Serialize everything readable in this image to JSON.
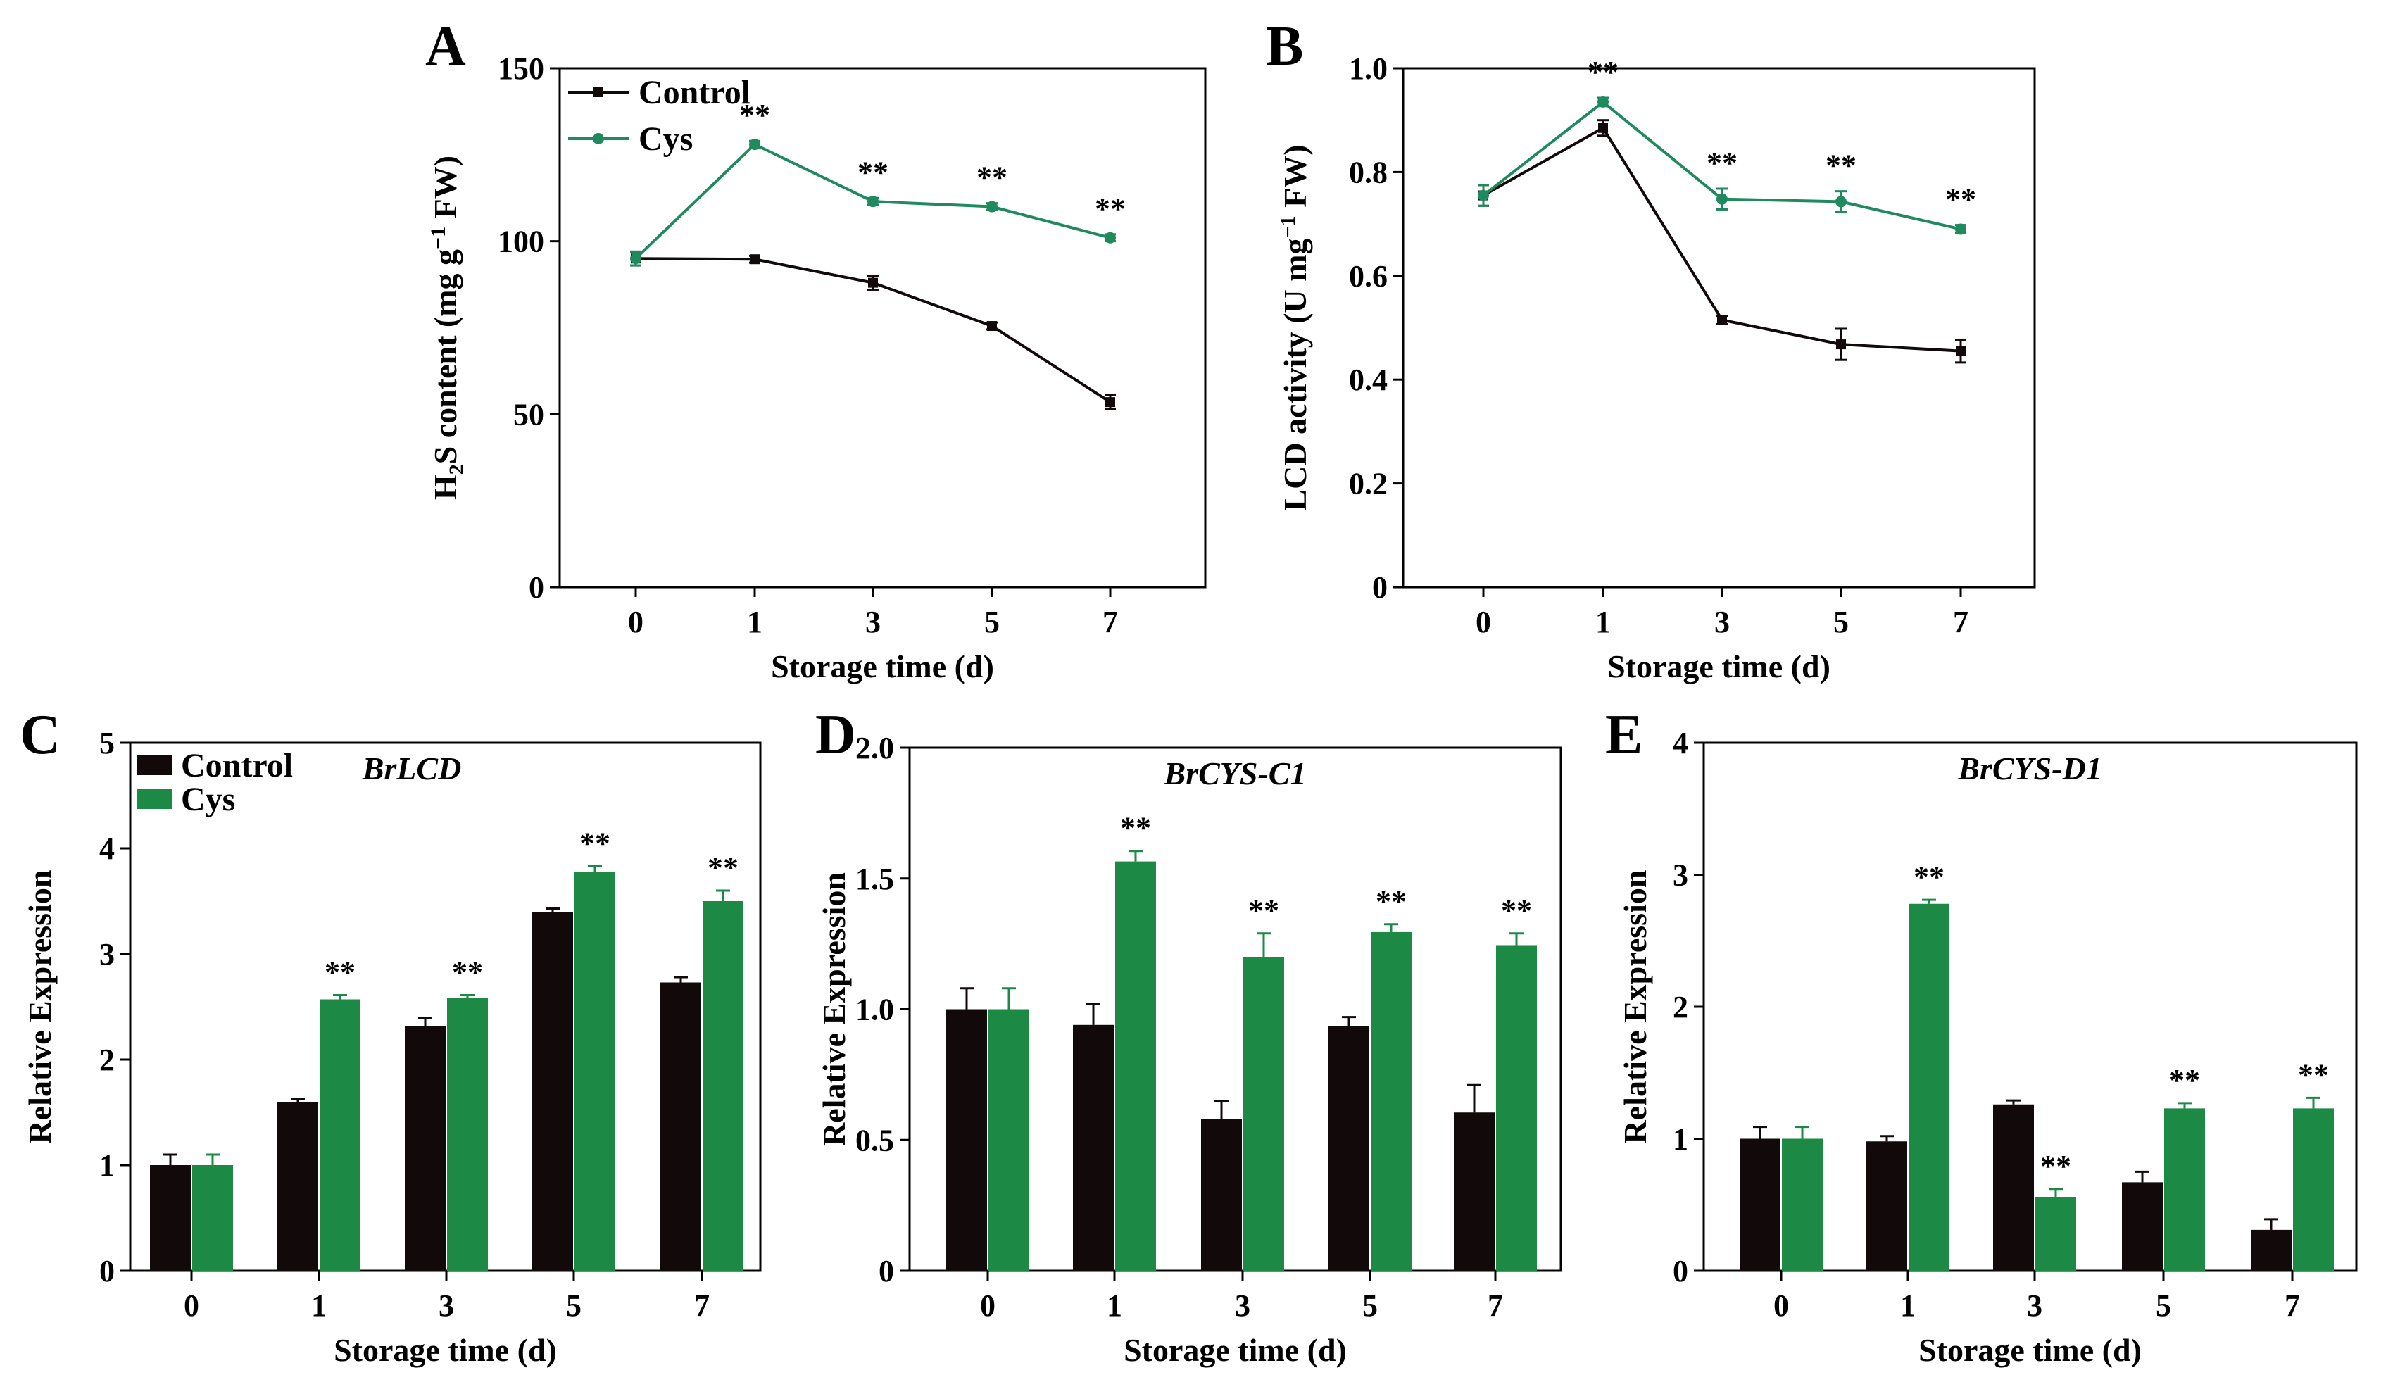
{
  "colors": {
    "control": "#120a0a",
    "cys": "#1c8a44",
    "cys_line": "#1e8a5e",
    "axis": "#000000"
  },
  "chart_data": [
    {
      "id": "A",
      "type": "line",
      "panel_label": "A",
      "title": "",
      "xlabel": "Storage time (d)",
      "ylabel_parts": [
        "H",
        "2",
        "S content (mg g",
        "−1",
        " FW)"
      ],
      "categories": [
        "0",
        "1",
        "3",
        "5",
        "7"
      ],
      "ylim": [
        0,
        150
      ],
      "yticks": [
        0,
        50,
        100,
        150
      ],
      "ytick_labels": [
        "0",
        "50",
        "100",
        "150"
      ],
      "legend": {
        "placement": "top-left",
        "entries": [
          "Control",
          "Cys"
        ]
      },
      "series": [
        {
          "name": "Control",
          "values": [
            95,
            94.8,
            88,
            75.5,
            53.5
          ],
          "errors": [
            2,
            1,
            2,
            1,
            2
          ]
        },
        {
          "name": "Cys",
          "values": [
            95,
            128,
            111.5,
            110,
            101
          ],
          "errors": [
            2,
            1,
            1,
            1,
            1
          ]
        }
      ],
      "significance": [
        "",
        "**",
        "**",
        "**",
        "**"
      ]
    },
    {
      "id": "B",
      "type": "line",
      "panel_label": "B",
      "title": "",
      "xlabel": "Storage time (d)",
      "ylabel_parts": [
        "LCD activity (U mg",
        "−1",
        " FW)"
      ],
      "categories": [
        "0",
        "1",
        "3",
        "5",
        "7"
      ],
      "ylim": [
        0,
        1.0
      ],
      "yticks": [
        0,
        0.2,
        0.4,
        0.6,
        0.8,
        1.0
      ],
      "ytick_labels": [
        "0",
        "0.2",
        "0.4",
        "0.6",
        "0.8",
        "1.0"
      ],
      "series": [
        {
          "name": "Control",
          "values": [
            0.755,
            0.885,
            0.515,
            0.468,
            0.455
          ],
          "errors": [
            0.02,
            0.015,
            0.008,
            0.03,
            0.022
          ]
        },
        {
          "name": "Cys",
          "values": [
            0.755,
            0.935,
            0.748,
            0.743,
            0.69
          ],
          "errors": [
            0.02,
            0.008,
            0.02,
            0.02,
            0.008
          ]
        }
      ],
      "significance": [
        "",
        "**",
        "**",
        "**",
        "**"
      ]
    },
    {
      "id": "C",
      "type": "bar",
      "panel_label": "C",
      "title": "BrLCD",
      "xlabel": "Storage time (d)",
      "ylabel": "Relative Expression",
      "categories": [
        "0",
        "1",
        "3",
        "5",
        "7"
      ],
      "ylim": [
        0,
        5
      ],
      "yticks": [
        0,
        1,
        2,
        3,
        4,
        5
      ],
      "ytick_labels": [
        "0",
        "1",
        "2",
        "3",
        "4",
        "5"
      ],
      "legend": {
        "placement": "top-left",
        "entries": [
          "Control",
          "Cys"
        ]
      },
      "series": [
        {
          "name": "Control",
          "values": [
            1.0,
            1.6,
            2.32,
            3.4,
            2.73
          ],
          "errors": [
            0.1,
            0.03,
            0.07,
            0.03,
            0.05
          ]
        },
        {
          "name": "Cys",
          "values": [
            1.0,
            2.57,
            2.58,
            3.78,
            3.5
          ],
          "errors": [
            0.1,
            0.04,
            0.03,
            0.05,
            0.1
          ]
        }
      ],
      "significance": [
        "",
        "**",
        "**",
        "**",
        "**"
      ]
    },
    {
      "id": "D",
      "type": "bar",
      "panel_label": "D",
      "title": "BrCYS-C1",
      "xlabel": "Storage time (d)",
      "ylabel": "Relative Expression",
      "categories": [
        "0",
        "1",
        "3",
        "5",
        "7"
      ],
      "ylim": [
        0,
        2.0
      ],
      "yticks": [
        0,
        0.5,
        1.0,
        1.5,
        2.0
      ],
      "ytick_labels": [
        "0",
        "0.5",
        "1.0",
        "1.5",
        "2.0"
      ],
      "series": [
        {
          "name": "Control",
          "values": [
            1.0,
            0.94,
            0.58,
            0.935,
            0.605
          ],
          "errors": [
            0.08,
            0.08,
            0.07,
            0.035,
            0.105
          ]
        },
        {
          "name": "Cys",
          "values": [
            1.0,
            1.565,
            1.2,
            1.295,
            1.245
          ],
          "errors": [
            0.08,
            0.04,
            0.09,
            0.03,
            0.045
          ]
        }
      ],
      "significance": [
        "",
        "**",
        "**",
        "**",
        "**"
      ]
    },
    {
      "id": "E",
      "type": "bar",
      "panel_label": "E",
      "title": "BrCYS-D1",
      "xlabel": "Storage time (d)",
      "ylabel": "Relative Expression",
      "categories": [
        "0",
        "1",
        "3",
        "5",
        "7"
      ],
      "ylim": [
        0,
        4
      ],
      "yticks": [
        0,
        1,
        2,
        3,
        4
      ],
      "ytick_labels": [
        "0",
        "1",
        "2",
        "3",
        "4"
      ],
      "series": [
        {
          "name": "Control",
          "values": [
            1.0,
            0.98,
            1.26,
            0.67,
            0.31
          ],
          "errors": [
            0.09,
            0.04,
            0.03,
            0.08,
            0.08
          ]
        },
        {
          "name": "Cys",
          "values": [
            1.0,
            2.78,
            0.56,
            1.23,
            1.23
          ],
          "errors": [
            0.09,
            0.03,
            0.06,
            0.04,
            0.08
          ]
        }
      ],
      "significance": [
        "",
        "**",
        "**",
        "**",
        "**"
      ]
    }
  ]
}
